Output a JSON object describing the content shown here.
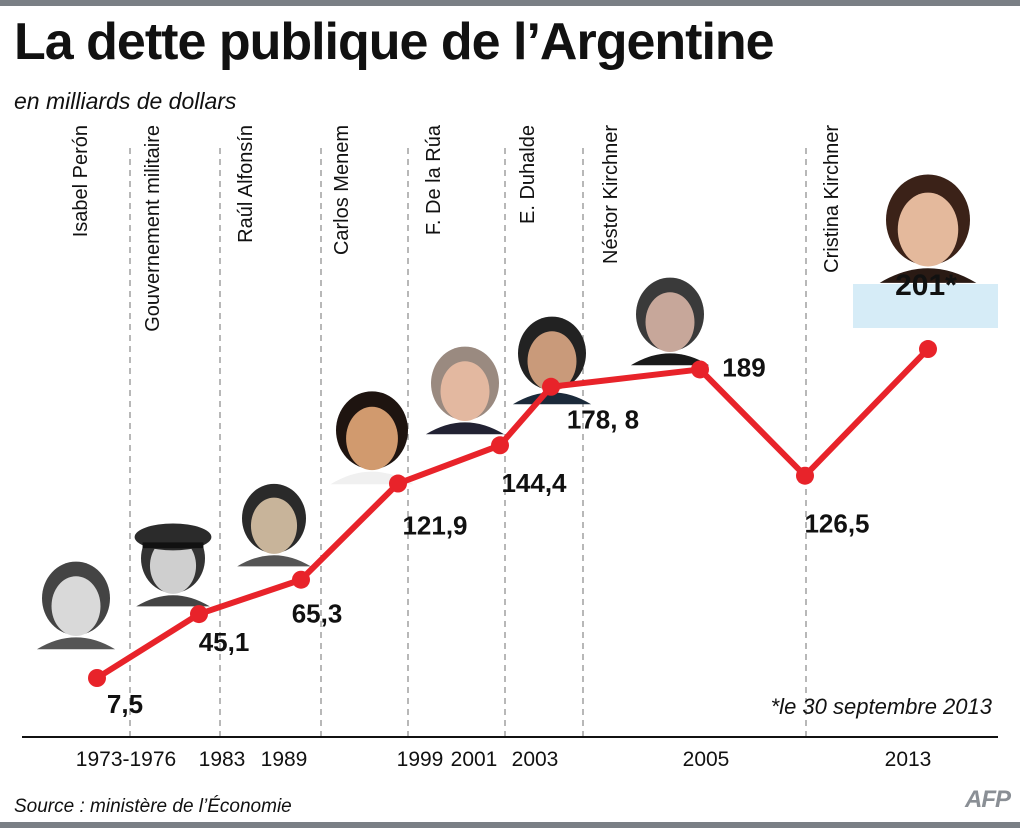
{
  "header": {
    "title": "La dette publique de l’Argentine",
    "subtitle": "en milliards de dollars"
  },
  "footnote": "*le 30 septembre 2013",
  "source": "Source : ministère de l’Économie",
  "logo": "AFP",
  "colors": {
    "line": "#e8232a",
    "highlight_box": "#d6ecf7",
    "divider": "#888888",
    "bars": "#7a7f85"
  },
  "chart_data": {
    "type": "line",
    "title": "La dette publique de l’Argentine",
    "subtitle": "en milliards de dollars",
    "x_tick_labels": [
      "1973-1976",
      "1983",
      "1989",
      "1999",
      "2001",
      "2003",
      "2005",
      "2013"
    ],
    "series": [
      {
        "values": [
          7.5,
          45.1,
          65.3,
          121.9,
          144.4,
          178.8,
          189,
          126.5,
          201
        ]
      }
    ],
    "data_labels": [
      "7,5",
      "45,1",
      "65,3",
      "121,9",
      "144,4",
      "178, 8",
      "189",
      "126,5",
      "201*"
    ],
    "presidents": [
      "Isabel Perón",
      "Gouvernement militaire",
      "Raúl Alfonsín",
      "Carlos Menem",
      "F. De la Rúa",
      "E. Duhalde",
      "Néstor Kirchner",
      "Cristina Kirchner"
    ],
    "portrait_icons": [
      "isabel-peron-portrait-icon",
      "military-officer-portrait-icon",
      "raul-alfonsin-portrait-icon",
      "carlos-menem-portrait-icon",
      "de-la-rua-portrait-icon",
      "duhalde-portrait-icon",
      "nestor-kirchner-portrait-icon",
      "cristina-kirchner-portrait-icon"
    ],
    "highlighted_point": "201*",
    "grid": false,
    "legend": "none"
  }
}
